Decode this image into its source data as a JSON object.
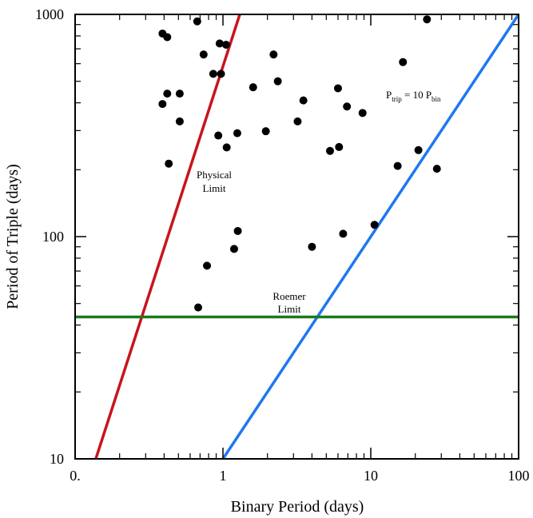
{
  "chart_data": {
    "type": "scatter",
    "xlabel": "Binary Period (days)",
    "ylabel": "Period of Triple (days)",
    "xscale": "log",
    "yscale": "log",
    "xlim": [
      0.1,
      100
    ],
    "ylim": [
      10,
      1000
    ],
    "x_tick_labels": [
      "0.",
      "1",
      "10",
      "100"
    ],
    "y_tick_labels": [
      "10",
      "100",
      "1000"
    ],
    "grid": false,
    "points": [
      {
        "x": 0.39,
        "y": 820
      },
      {
        "x": 0.42,
        "y": 790
      },
      {
        "x": 0.67,
        "y": 930
      },
      {
        "x": 0.95,
        "y": 740
      },
      {
        "x": 1.05,
        "y": 730
      },
      {
        "x": 0.74,
        "y": 660
      },
      {
        "x": 2.2,
        "y": 660
      },
      {
        "x": 24,
        "y": 950
      },
      {
        "x": 16.5,
        "y": 610
      },
      {
        "x": 0.86,
        "y": 540
      },
      {
        "x": 0.97,
        "y": 540
      },
      {
        "x": 2.35,
        "y": 500
      },
      {
        "x": 1.6,
        "y": 470
      },
      {
        "x": 6.0,
        "y": 465
      },
      {
        "x": 0.42,
        "y": 440
      },
      {
        "x": 0.51,
        "y": 440
      },
      {
        "x": 3.5,
        "y": 410
      },
      {
        "x": 0.39,
        "y": 395
      },
      {
        "x": 6.9,
        "y": 385
      },
      {
        "x": 8.8,
        "y": 360
      },
      {
        "x": 0.51,
        "y": 330
      },
      {
        "x": 3.2,
        "y": 330
      },
      {
        "x": 1.95,
        "y": 298
      },
      {
        "x": 1.25,
        "y": 292
      },
      {
        "x": 0.93,
        "y": 285
      },
      {
        "x": 1.06,
        "y": 252
      },
      {
        "x": 6.1,
        "y": 253
      },
      {
        "x": 5.3,
        "y": 243
      },
      {
        "x": 21,
        "y": 245
      },
      {
        "x": 0.43,
        "y": 213
      },
      {
        "x": 15.2,
        "y": 208
      },
      {
        "x": 28,
        "y": 202
      },
      {
        "x": 10.6,
        "y": 113
      },
      {
        "x": 1.26,
        "y": 106
      },
      {
        "x": 6.5,
        "y": 103
      },
      {
        "x": 4.0,
        "y": 90
      },
      {
        "x": 1.19,
        "y": 88
      },
      {
        "x": 0.78,
        "y": 74
      },
      {
        "x": 0.68,
        "y": 48
      }
    ],
    "lines": [
      {
        "label": "Physical Limit",
        "color": "#c8141e",
        "x": [
          0.138,
          1.3
        ],
        "y": [
          10,
          1000
        ]
      },
      {
        "label": "P_trip = 10 P_bin",
        "color": "#1e78f0",
        "x": [
          1,
          100
        ],
        "y": [
          10,
          1000
        ]
      },
      {
        "label": "Roemer Limit",
        "color": "#1a7a1a",
        "x": [
          0.1,
          100
        ],
        "y": [
          43.5,
          43.5
        ]
      }
    ],
    "annotations": {
      "physical": [
        "Physical",
        "Limit"
      ],
      "roemer": [
        "Roemer",
        "Limit"
      ],
      "ptrip": {
        "p1": "P",
        "sub1": "trip",
        "mid": " = 10 P",
        "sub2": "bin"
      }
    }
  }
}
